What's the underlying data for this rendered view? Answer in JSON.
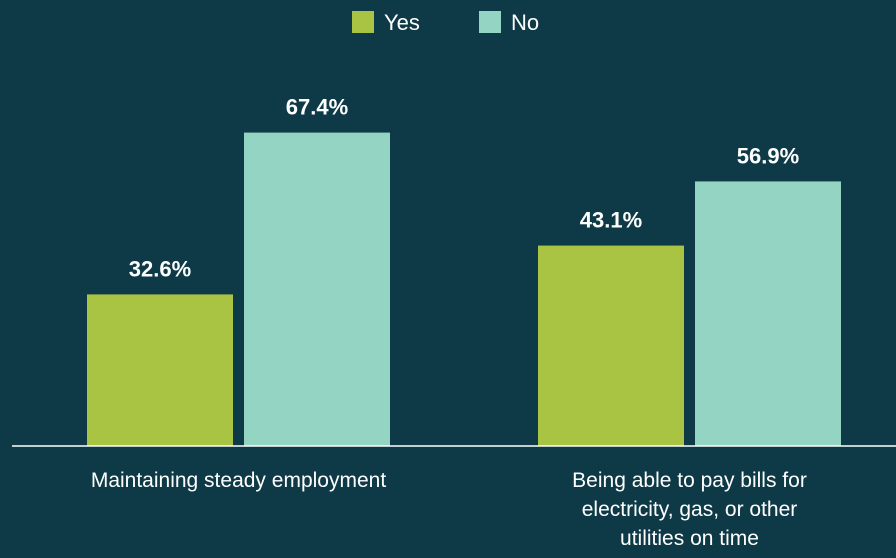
{
  "chart_data": {
    "type": "bar",
    "categories": [
      [
        "Maintaining steady employment"
      ],
      [
        "Being able to pay bills for",
        "electricity, gas, or other",
        "utilities on time"
      ]
    ],
    "series": [
      {
        "name": "Yes",
        "values": [
          32.6,
          43.1
        ],
        "labels": [
          "32.6%",
          "43.1%"
        ],
        "color": "#a9c443"
      },
      {
        "name": "No",
        "values": [
          67.4,
          56.9
        ],
        "labels": [
          "67.4%",
          "56.9%"
        ],
        "color": "#93d4c2"
      }
    ],
    "ylim": [
      0,
      100
    ],
    "grid": false,
    "legend_position": "top-center",
    "background_color": "#0e3a47"
  }
}
